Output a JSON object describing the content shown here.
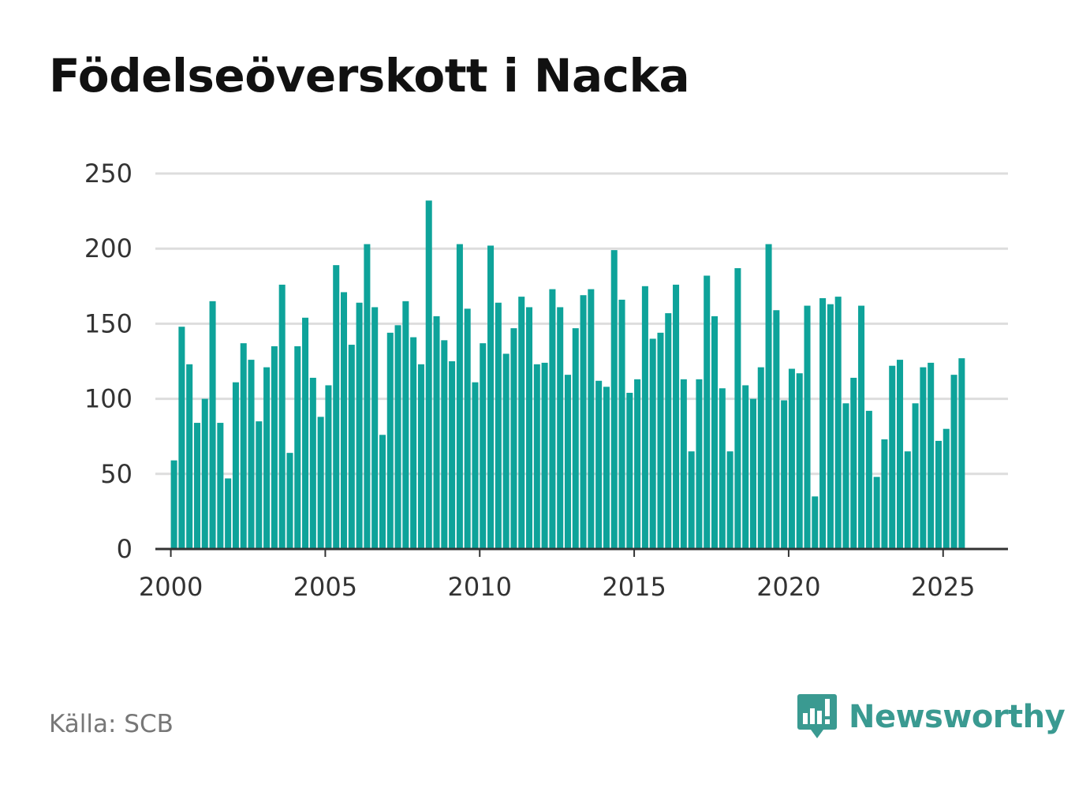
{
  "header": {
    "title": "Födelseöverskott i Nacka"
  },
  "footer": {
    "source": "Källa: SCB",
    "brand": "Newsworthy"
  },
  "colors": {
    "bar": "#0ea39a",
    "grid": "#dddddd",
    "axis": "#333333",
    "text": "#333333",
    "brand": "#3a9a91"
  },
  "icons": {
    "brand_logo": "bar-chart-speech-bubble-icon"
  },
  "chart_data": {
    "type": "bar",
    "title": "Födelseöverskott i Nacka",
    "xlabel": "",
    "ylabel": "",
    "ylim": [
      0,
      250
    ],
    "xlim": [
      1999.5,
      2027.1
    ],
    "yticks": [
      "0",
      "50",
      "100",
      "150",
      "200",
      "250"
    ],
    "xticks": [
      "2000",
      "2005",
      "2010",
      "2015",
      "2020",
      "2025"
    ],
    "grid": true,
    "legend": "none",
    "frequency": "quarterly",
    "start_year": 2000,
    "values": [
      59,
      148,
      123,
      84,
      100,
      165,
      84,
      47,
      111,
      137,
      126,
      85,
      121,
      135,
      176,
      64,
      135,
      154,
      114,
      88,
      109,
      189,
      171,
      136,
      164,
      203,
      161,
      76,
      144,
      149,
      165,
      141,
      123,
      232,
      155,
      139,
      125,
      203,
      160,
      111,
      137,
      202,
      164,
      130,
      147,
      168,
      161,
      123,
      124,
      173,
      161,
      116,
      147,
      169,
      173,
      112,
      108,
      199,
      166,
      104,
      113,
      175,
      140,
      144,
      157,
      176,
      113,
      65,
      113,
      182,
      155,
      107,
      65,
      187,
      109,
      100,
      121,
      203,
      159,
      99,
      120,
      117,
      162,
      35,
      167,
      163,
      168,
      97,
      114,
      162,
      92,
      48,
      73,
      122,
      126,
      65,
      97,
      121,
      124,
      72,
      80,
      116,
      127
    ]
  }
}
